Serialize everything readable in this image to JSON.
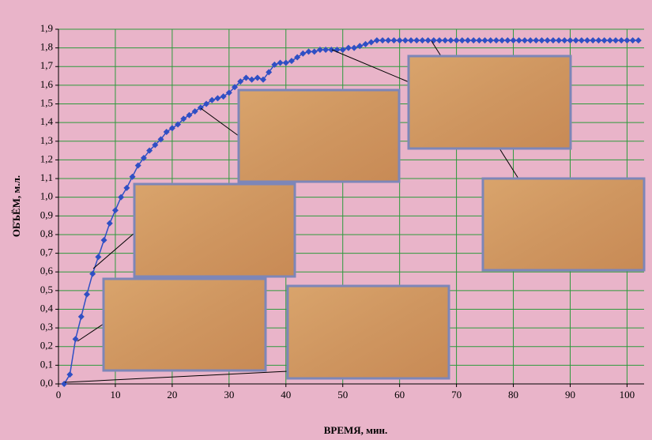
{
  "chart_data": {
    "type": "line",
    "x_label": "ВРЕМЯ, мин.",
    "y_label": "ОБЪЁМ, м.л.",
    "x": [
      1,
      2,
      3,
      4,
      5,
      6,
      7,
      8,
      9,
      10,
      11,
      12,
      13,
      14,
      15,
      16,
      17,
      18,
      19,
      20,
      21,
      22,
      23,
      24,
      25,
      26,
      27,
      28,
      29,
      30,
      31,
      32,
      33,
      34,
      35,
      36,
      37,
      38,
      39,
      40,
      41,
      42,
      43,
      44,
      45,
      46,
      47,
      48,
      49,
      50,
      51,
      52,
      53,
      54,
      55,
      56,
      57,
      58,
      59,
      60,
      61,
      62,
      63,
      64,
      65,
      66,
      67,
      68,
      69,
      70,
      71,
      72,
      73,
      74,
      75,
      76,
      77,
      78,
      79,
      80,
      81,
      82,
      83,
      84,
      85,
      86,
      87,
      88,
      89,
      90,
      91,
      92,
      93,
      94,
      95,
      96,
      97,
      98,
      99,
      100,
      101,
      102
    ],
    "series": [
      {
        "color": "#2f4fc4",
        "values": [
          0.0,
          0.05,
          0.24,
          0.36,
          0.48,
          0.59,
          0.68,
          0.77,
          0.86,
          0.93,
          1.0,
          1.05,
          1.11,
          1.17,
          1.21,
          1.25,
          1.28,
          1.31,
          1.35,
          1.37,
          1.39,
          1.42,
          1.44,
          1.46,
          1.48,
          1.5,
          1.52,
          1.53,
          1.54,
          1.56,
          1.59,
          1.62,
          1.64,
          1.63,
          1.64,
          1.63,
          1.67,
          1.71,
          1.72,
          1.72,
          1.73,
          1.75,
          1.77,
          1.78,
          1.78,
          1.79,
          1.79,
          1.79,
          1.79,
          1.79,
          1.8,
          1.8,
          1.81,
          1.82,
          1.83,
          1.84,
          1.84,
          1.84,
          1.84,
          1.84,
          1.84,
          1.84,
          1.84,
          1.84,
          1.84,
          1.84,
          1.84,
          1.84,
          1.84,
          1.84,
          1.84,
          1.84,
          1.84,
          1.84,
          1.84,
          1.84,
          1.84,
          1.84,
          1.84,
          1.84,
          1.84,
          1.84,
          1.84,
          1.84,
          1.84,
          1.84,
          1.84,
          1.84,
          1.84,
          1.84,
          1.84,
          1.84,
          1.84,
          1.84,
          1.84,
          1.84,
          1.84,
          1.84,
          1.84,
          1.84,
          1.84,
          1.84
        ]
      }
    ],
    "xlim": [
      0,
      103
    ],
    "xticks": [
      0,
      10,
      20,
      30,
      40,
      50,
      60,
      70,
      80,
      90,
      100
    ],
    "ylim": [
      0,
      1.9
    ],
    "yticks": [
      {
        "value": 0,
        "label": "0,0"
      },
      {
        "value": 0.1,
        "label": "0,1"
      },
      {
        "value": 0.2,
        "label": "0,2"
      },
      {
        "value": 0.3,
        "label": "0,3"
      },
      {
        "value": 0.4,
        "label": "0,4"
      },
      {
        "value": 0.5,
        "label": "0,5"
      },
      {
        "value": 0.6,
        "label": "0,6"
      },
      {
        "value": 0.7,
        "label": "0,7"
      },
      {
        "value": 0.8,
        "label": "0,8"
      },
      {
        "value": 0.9,
        "label": "0,9"
      },
      {
        "value": 1.0,
        "label": "1,0"
      },
      {
        "value": 1.1,
        "label": "1,1"
      },
      {
        "value": 1.2,
        "label": "1,2"
      },
      {
        "value": 1.3,
        "label": "1,3"
      },
      {
        "value": 1.4,
        "label": "1,4"
      },
      {
        "value": 1.5,
        "label": "1,5"
      },
      {
        "value": 1.6,
        "label": "1,6"
      },
      {
        "value": 1.7,
        "label": "1,7"
      },
      {
        "value": 1.8,
        "label": "1,8"
      },
      {
        "value": 1.9,
        "label": "1,9"
      }
    ],
    "grid": true,
    "grid_color": "#2e9a3c"
  }
}
